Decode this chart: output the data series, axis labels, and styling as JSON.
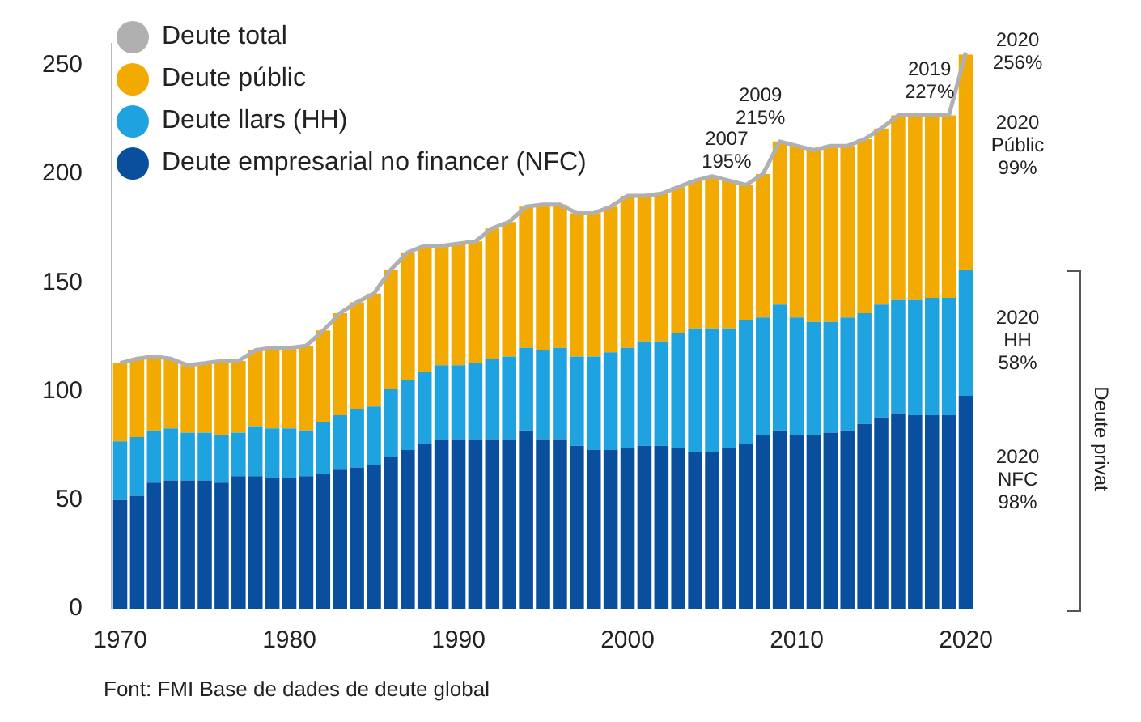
{
  "chart_data": {
    "type": "bar",
    "stacked": true,
    "x": [
      1970,
      1971,
      1972,
      1973,
      1974,
      1975,
      1976,
      1977,
      1978,
      1979,
      1980,
      1981,
      1982,
      1983,
      1984,
      1985,
      1986,
      1987,
      1988,
      1989,
      1990,
      1991,
      1992,
      1993,
      1994,
      1995,
      1996,
      1997,
      1998,
      1999,
      2000,
      2001,
      2002,
      2003,
      2004,
      2005,
      2006,
      2007,
      2008,
      2009,
      2010,
      2011,
      2012,
      2013,
      2014,
      2015,
      2016,
      2017,
      2018,
      2019,
      2020
    ],
    "xlim": [
      1969.5,
      2020.5
    ],
    "xticks": [
      1970,
      1980,
      1990,
      2000,
      2010,
      2020
    ],
    "ylim": [
      0,
      260
    ],
    "yticks": [
      0,
      50,
      100,
      150,
      200,
      250
    ],
    "series": [
      {
        "name": "Deute empresarial no financer (NFC)",
        "color": "#0a4f9e",
        "values": [
          50,
          52,
          58,
          59,
          59,
          59,
          58,
          61,
          61,
          60,
          60,
          61,
          62,
          64,
          65,
          66,
          70,
          73,
          76,
          78,
          78,
          78,
          78,
          78,
          82,
          78,
          78,
          75,
          73,
          73,
          74,
          75,
          75,
          74,
          72,
          72,
          74,
          76,
          80,
          82,
          80,
          80,
          81,
          82,
          85,
          88,
          90,
          89,
          89,
          89,
          98
        ]
      },
      {
        "name": "Deute llars (HH)",
        "color": "#1ea3e0",
        "values": [
          27,
          27,
          24,
          24,
          22,
          22,
          22,
          20,
          23,
          23,
          23,
          21,
          24,
          25,
          27,
          27,
          31,
          32,
          33,
          34,
          34,
          35,
          37,
          38,
          38,
          41,
          42,
          41,
          43,
          45,
          46,
          48,
          48,
          53,
          57,
          57,
          55,
          57,
          54,
          58,
          54,
          52,
          51,
          52,
          51,
          52,
          52,
          53,
          54,
          54,
          58
        ]
      },
      {
        "name": "Deute públic",
        "color": "#f2a900",
        "values": [
          36,
          36,
          34,
          32,
          31,
          32,
          34,
          33,
          35,
          37,
          37,
          39,
          42,
          47,
          49,
          52,
          55,
          59,
          58,
          55,
          56,
          56,
          60,
          62,
          65,
          67,
          66,
          66,
          66,
          67,
          70,
          67,
          68,
          67,
          68,
          70,
          68,
          62,
          66,
          75,
          79,
          79,
          81,
          79,
          80,
          81,
          85,
          85,
          84,
          84,
          99
        ]
      },
      {
        "name": "Deute total",
        "type": "line",
        "color": "#b0b0b0",
        "values": [
          113,
          115,
          116,
          115,
          112,
          113,
          114,
          114,
          119,
          120,
          120,
          121,
          128,
          136,
          141,
          145,
          156,
          164,
          167,
          167,
          168,
          169,
          175,
          178,
          185,
          186,
          186,
          182,
          182,
          185,
          190,
          190,
          191,
          194,
          197,
          199,
          197,
          195,
          200,
          215,
          213,
          211,
          213,
          213,
          216,
          221,
          227,
          227,
          227,
          227,
          256
        ]
      }
    ],
    "legend": "top left",
    "grid": false,
    "marker": "none",
    "annotations": [
      {
        "text": "2007\n195%",
        "x": 2007,
        "y": 195
      },
      {
        "text": "2009\n215%",
        "x": 2009,
        "y": 215
      },
      {
        "text": "2019\n227%",
        "x": 2019,
        "y": 227
      },
      {
        "text": "2020\n256%",
        "x": 2020,
        "y": 256
      },
      {
        "text": "2020\nPúblic\n99%",
        "x": 2020,
        "y": 213
      },
      {
        "text": "2020\nHH\n58%",
        "x": 2020,
        "y": 123
      },
      {
        "text": "2020\nNFC\n98%",
        "x": 2020,
        "y": 59
      },
      "Deute privat",
      "Font: FMI Base de dades de deute global"
    ]
  }
}
